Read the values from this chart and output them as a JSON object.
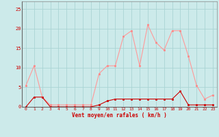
{
  "hours": [
    0,
    1,
    2,
    3,
    4,
    5,
    6,
    7,
    8,
    9,
    10,
    11,
    12,
    13,
    14,
    15,
    16,
    17,
    18,
    19,
    20,
    21,
    22,
    23
  ],
  "rafales": [
    5.5,
    10.5,
    2.5,
    0.5,
    0.5,
    0.5,
    0.5,
    0.5,
    0.5,
    8.5,
    10.5,
    10.5,
    18.0,
    19.5,
    10.5,
    21.0,
    16.5,
    14.5,
    19.5,
    19.5,
    13.0,
    5.5,
    2.0,
    3.0
  ],
  "moyen": [
    0,
    2.5,
    2.5,
    0,
    0,
    0,
    0,
    0,
    0,
    0.5,
    1.5,
    2.0,
    2.0,
    2.0,
    2.0,
    2.0,
    2.0,
    2.0,
    2.0,
    4.0,
    0.5,
    0.5,
    0.5,
    0.5
  ],
  "bg_color": "#cceaea",
  "grid_color": "#aad4d4",
  "line_color_rafales": "#ff9999",
  "line_color_moyen": "#cc0000",
  "marker_color_rafales": "#ff8888",
  "marker_color_moyen": "#cc0000",
  "xlabel": "Vent moyen/en rafales ( km/h )",
  "ylim": [
    0,
    27
  ],
  "yticks": [
    0,
    5,
    10,
    15,
    20,
    25
  ],
  "axis_color": "#cc0000",
  "spine_color": "#888888"
}
